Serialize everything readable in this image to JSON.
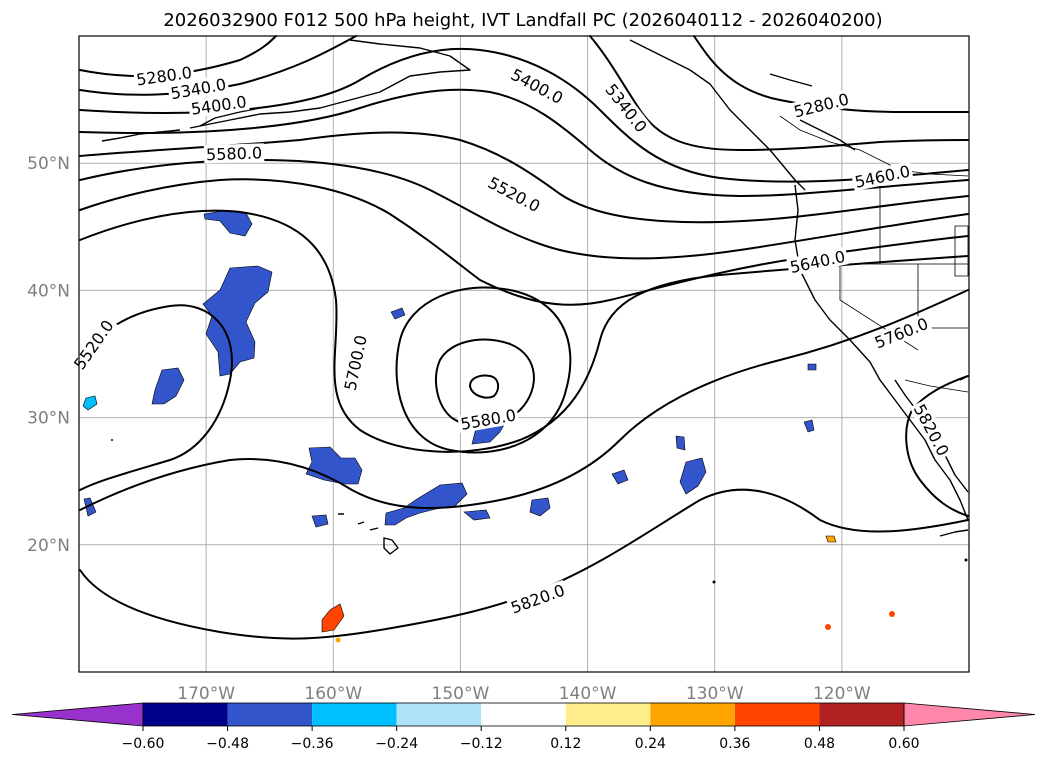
{
  "title": "2026032900 F012 500 hPa height, IVT Landfall PC (2026040112 - 2026040200)",
  "map": {
    "lon_range": [
      -180,
      -110
    ],
    "lat_range": [
      10,
      60
    ],
    "lon_ticks": [
      {
        "lon": -170,
        "label": "170°W"
      },
      {
        "lon": -160,
        "label": "160°W"
      },
      {
        "lon": -150,
        "label": "150°W"
      },
      {
        "lon": -140,
        "label": "140°W"
      },
      {
        "lon": -130,
        "label": "130°W"
      },
      {
        "lon": -120,
        "label": "120°W"
      }
    ],
    "lat_ticks": [
      {
        "lat": 50,
        "label": "50°N"
      },
      {
        "lat": 40,
        "label": "40°N"
      },
      {
        "lat": 30,
        "label": "30°N"
      },
      {
        "lat": 20,
        "label": "20°N"
      }
    ],
    "grid": true
  },
  "contour_labels": [
    {
      "text": "5280.0",
      "lon": -173.3,
      "lat": 56.8,
      "angle": -8
    },
    {
      "text": "5340.0",
      "lon": -170.6,
      "lat": 55.8,
      "angle": -10
    },
    {
      "text": "5400.0",
      "lon": -169.0,
      "lat": 54.5,
      "angle": -8
    },
    {
      "text": "5580.0",
      "lon": -167.8,
      "lat": 50.7,
      "angle": -2
    },
    {
      "text": "5400.0",
      "lon": -144.0,
      "lat": 56.0,
      "angle": 28
    },
    {
      "text": "5340.0",
      "lon": -137.0,
      "lat": 54.3,
      "angle": 52
    },
    {
      "text": "5280.0",
      "lon": -121.6,
      "lat": 54.5,
      "angle": -14
    },
    {
      "text": "5520.0",
      "lon": -145.8,
      "lat": 47.5,
      "angle": 28
    },
    {
      "text": "5460.0",
      "lon": -116.8,
      "lat": 48.9,
      "angle": -12
    },
    {
      "text": "5640.0",
      "lon": -121.9,
      "lat": 42.2,
      "angle": -12
    },
    {
      "text": "5700.0",
      "lon": -158.2,
      "lat": 34.3,
      "angle": -78
    },
    {
      "text": "5580.0",
      "lon": -147.8,
      "lat": 29.8,
      "angle": -10
    },
    {
      "text": "5760.0",
      "lon": -115.3,
      "lat": 36.6,
      "angle": -22
    },
    {
      "text": "5820.0",
      "lon": -143.9,
      "lat": 15.7,
      "angle": -20
    },
    {
      "text": "5520.0",
      "lon": -178.8,
      "lat": 35.7,
      "angle": -55
    },
    {
      "text": "5820.0",
      "lon": -113.0,
      "lat": 29.0,
      "angle": 62
    }
  ],
  "colorbar": {
    "levels": [
      "−0.60",
      "−0.48",
      "−0.36",
      "−0.24",
      "−0.12",
      "0.12",
      "0.24",
      "0.36",
      "0.48",
      "0.60"
    ],
    "colors": [
      "#9932cc",
      "#00008b",
      "#3355cc",
      "#00bfff",
      "#aee2f7",
      "#ffffff",
      "#ffec8b",
      "#ffa500",
      "#ff4500",
      "#b22222",
      "#ff88aa"
    ]
  },
  "ivt_colors": {
    "neg_strong": "#3355cc",
    "neg_weak": "#00bfff",
    "pos_strong": "#ff4500",
    "pos_weak": "#ffa500"
  }
}
